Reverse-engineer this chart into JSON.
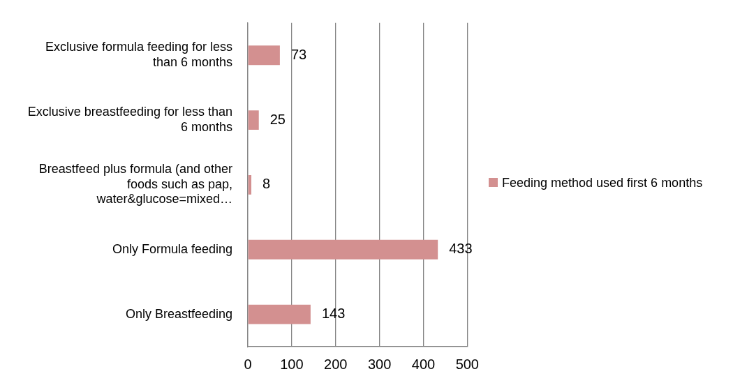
{
  "chart_data": {
    "type": "bar",
    "orientation": "horizontal",
    "categories": [
      "Exclusive formula feeding for less than 6 months",
      "Exclusive breastfeeding for less than 6 months",
      "Breastfeed plus formula (and other foods such as pap, water&glucose=mixed…",
      "Only Formula feeding",
      "Only Breastfeeding"
    ],
    "series": [
      {
        "name": "Feeding method used first 6 months",
        "color": "#d39090",
        "values": [
          73,
          25,
          8,
          433,
          143
        ]
      }
    ],
    "xlim": [
      0,
      500
    ],
    "xticks": [
      0,
      100,
      200,
      300,
      400,
      500
    ],
    "grid": "x",
    "legend": "right",
    "data_labels": true
  }
}
